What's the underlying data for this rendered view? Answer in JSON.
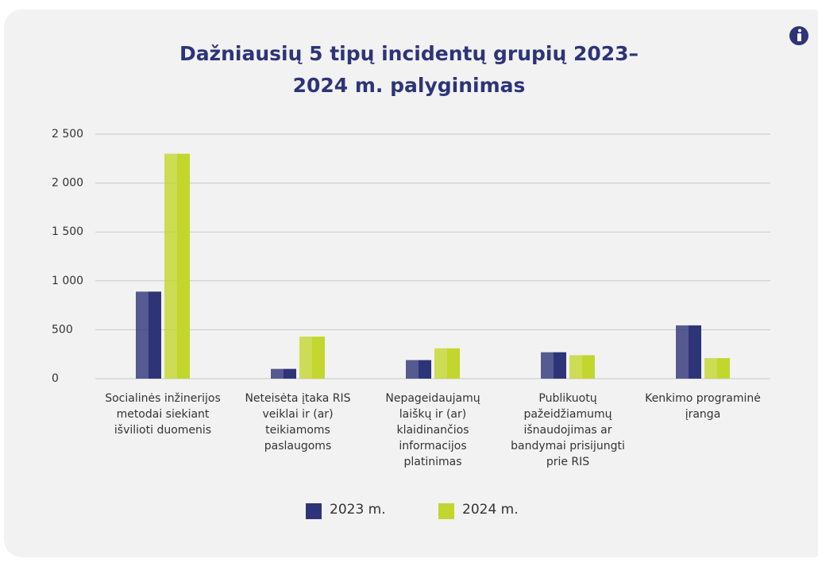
{
  "chart_data": {
    "type": "bar",
    "title": "Dažniausių 5 tipų incidentų grupių 2023–2024 m. palyginimas",
    "categories": [
      "Socialinės inžinerijos metodai siekiant išvilioti duomenis",
      "Neteisėta įtaka RIS veiklai ir (ar) teikiamoms paslaugoms",
      "Nepageidaujamų laiškų ir (ar) klaidinančios informacijos platinimas",
      "Publikuotų pažeidžiamumų išnaudojimas ar bandymai prisijungti prie RIS",
      "Kenkimo programinė įranga"
    ],
    "series": [
      {
        "name": "2023 m.",
        "color": "#2e3478",
        "values": [
          890,
          100,
          190,
          270,
          545
        ]
      },
      {
        "name": "2024 m.",
        "color": "#c2d62e",
        "values": [
          2300,
          430,
          310,
          240,
          210
        ]
      }
    ],
    "ylim": [
      0,
      2500
    ],
    "yticks": [
      0,
      500,
      {
        "value": 1000,
        "label": "1 000"
      },
      {
        "value": 1500,
        "label": "1 500"
      },
      {
        "value": 2000,
        "label": "2 000"
      },
      {
        "value": 2500,
        "label": "2 500"
      }
    ],
    "grid": true
  }
}
